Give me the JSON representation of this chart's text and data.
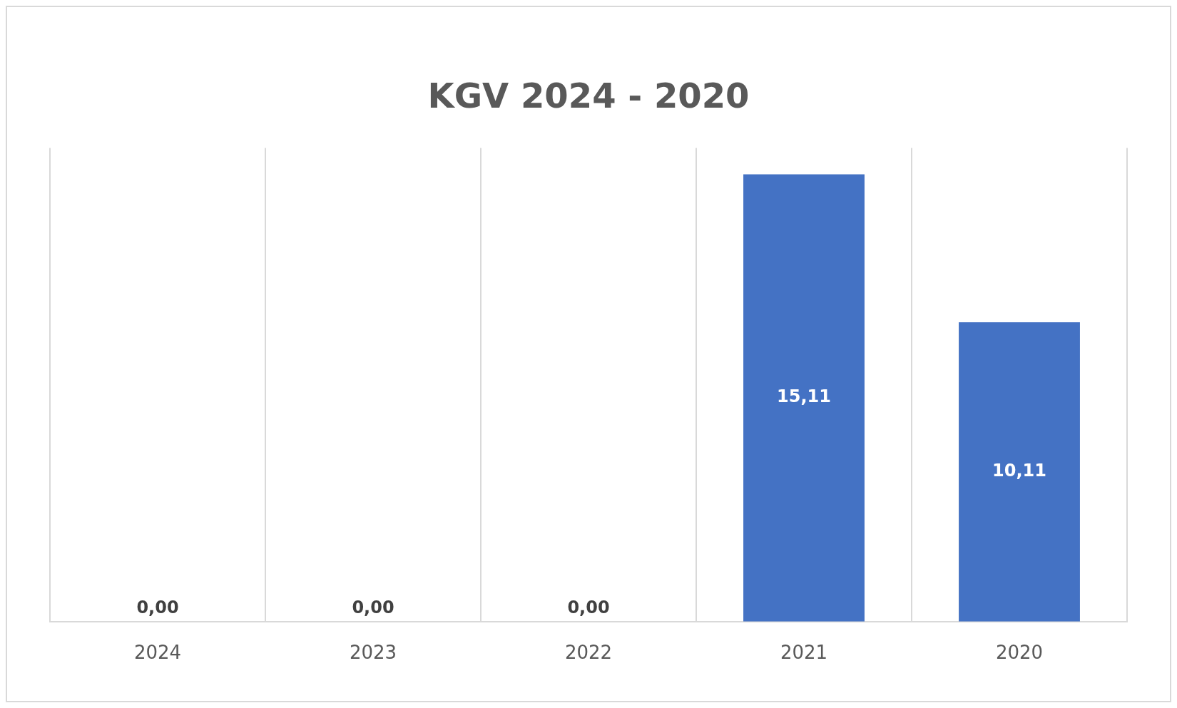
{
  "chart_data": {
    "type": "bar",
    "title": "KGV 2024 - 2020",
    "categories": [
      "2024",
      "2023",
      "2022",
      "2021",
      "2020"
    ],
    "values": [
      0,
      0,
      0,
      15.11,
      10.11
    ],
    "value_labels": [
      "0,00",
      "0,00",
      "0,00",
      "15,11",
      "10,11"
    ],
    "color": "#4472c4",
    "grid": "x",
    "legend": false
  }
}
